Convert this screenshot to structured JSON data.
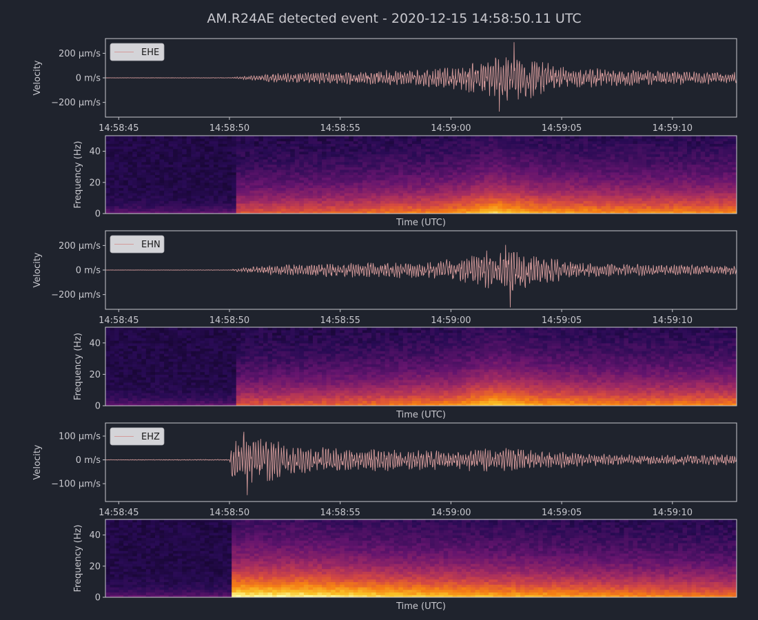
{
  "title": "AM.R24AE detected event - 2020-12-15 14:58:50.11 UTC",
  "colors": {
    "background": "#1f232d",
    "text": "#c9c9cf",
    "axes_frame": "#c9c9cf",
    "trace": "#d49a9a",
    "legend_bg": "#d4d4d8",
    "spectrogram_colormap": "inferno"
  },
  "chart_data": [
    {
      "type": "line",
      "name": "waveform-ehe",
      "legend": "EHE",
      "legend_position": "top-left",
      "ylabel": "Velocity",
      "yticks": [
        {
          "value": 200,
          "label": "200 µm/s"
        },
        {
          "value": 0,
          "label": "0 m/s"
        },
        {
          "value": -200,
          "label": "−200 µm/s"
        }
      ],
      "ylim": [
        -320,
        320
      ],
      "xlim": [
        -5.6,
        22.9
      ],
      "xticks": [
        {
          "value": -5,
          "label": "14:58:45"
        },
        {
          "value": 0,
          "label": "14:58:50"
        },
        {
          "value": 5,
          "label": "14:58:55"
        },
        {
          "value": 10,
          "label": "14:59:00"
        },
        {
          "value": 15,
          "label": "14:59:05"
        },
        {
          "value": 20,
          "label": "14:59:10"
        }
      ],
      "x_unit": "seconds relative to 14:58:50 UTC",
      "envelope": [
        [
          -5.6,
          1
        ],
        [
          0,
          2
        ],
        [
          0.4,
          10
        ],
        [
          2,
          40
        ],
        [
          5,
          55
        ],
        [
          8,
          70
        ],
        [
          10,
          90
        ],
        [
          11.5,
          150
        ],
        [
          12.5,
          230
        ],
        [
          13.5,
          180
        ],
        [
          15,
          90
        ],
        [
          18,
          70
        ],
        [
          20,
          60
        ],
        [
          22.9,
          50
        ]
      ],
      "peak_max": 290,
      "peak_min": -275
    },
    {
      "type": "heatmap",
      "name": "spectrogram-ehe",
      "xlabel": "Time (UTC)",
      "ylabel": "Frequency (Hz)",
      "yticks": [
        0,
        20,
        40
      ],
      "ylim": [
        0,
        50
      ],
      "xlim": [
        -5.6,
        22.9
      ],
      "onset": 0.4,
      "energy_profile": [
        [
          -5.6,
          0.12
        ],
        [
          0,
          0.12
        ],
        [
          0.4,
          0.55
        ],
        [
          5,
          0.6
        ],
        [
          10,
          0.7
        ],
        [
          12,
          0.85
        ],
        [
          14,
          0.75
        ],
        [
          18,
          0.7
        ],
        [
          22.9,
          0.7
        ]
      ]
    },
    {
      "type": "line",
      "name": "waveform-ehn",
      "legend": "EHN",
      "legend_position": "top-left",
      "ylabel": "Velocity",
      "yticks": [
        {
          "value": 200,
          "label": "200 µm/s"
        },
        {
          "value": 0,
          "label": "0 m/s"
        },
        {
          "value": -200,
          "label": "−200 µm/s"
        }
      ],
      "ylim": [
        -320,
        320
      ],
      "xlim": [
        -5.6,
        22.9
      ],
      "xticks": [
        {
          "value": -5,
          "label": "14:58:45"
        },
        {
          "value": 0,
          "label": "14:58:50"
        },
        {
          "value": 5,
          "label": "14:58:55"
        },
        {
          "value": 10,
          "label": "14:59:00"
        },
        {
          "value": 15,
          "label": "14:59:05"
        },
        {
          "value": 20,
          "label": "14:59:10"
        }
      ],
      "x_unit": "seconds relative to 14:58:50 UTC",
      "envelope": [
        [
          -5.6,
          1
        ],
        [
          0,
          2
        ],
        [
          0.4,
          15
        ],
        [
          2,
          45
        ],
        [
          5,
          60
        ],
        [
          9,
          70
        ],
        [
          10.5,
          110
        ],
        [
          12,
          200
        ],
        [
          13,
          210
        ],
        [
          14,
          120
        ],
        [
          16,
          60
        ],
        [
          20,
          45
        ],
        [
          22.9,
          40
        ]
      ],
      "peak_max": 205,
      "peak_min": -305
    },
    {
      "type": "heatmap",
      "name": "spectrogram-ehn",
      "xlabel": "Time (UTC)",
      "ylabel": "Frequency (Hz)",
      "yticks": [
        0,
        20,
        40
      ],
      "ylim": [
        0,
        50
      ],
      "xlim": [
        -5.6,
        22.9
      ],
      "onset": 0.4,
      "energy_profile": [
        [
          -5.6,
          0.12
        ],
        [
          0,
          0.12
        ],
        [
          0.4,
          0.55
        ],
        [
          5,
          0.6
        ],
        [
          10,
          0.7
        ],
        [
          12,
          0.85
        ],
        [
          14,
          0.75
        ],
        [
          18,
          0.68
        ],
        [
          22.9,
          0.68
        ]
      ]
    },
    {
      "type": "line",
      "name": "waveform-ehz",
      "legend": "EHZ",
      "legend_position": "top-left",
      "ylabel": "Velocity",
      "yticks": [
        {
          "value": 100,
          "label": "100 µm/s"
        },
        {
          "value": 0,
          "label": "0 m/s"
        },
        {
          "value": -100,
          "label": "−100 µm/s"
        }
      ],
      "ylim": [
        -175,
        155
      ],
      "xlim": [
        -5.6,
        22.9
      ],
      "xticks": [
        {
          "value": -5,
          "label": "14:58:45"
        },
        {
          "value": 0,
          "label": "14:58:50"
        },
        {
          "value": 5,
          "label": "14:58:55"
        },
        {
          "value": 10,
          "label": "14:59:00"
        },
        {
          "value": 15,
          "label": "14:59:05"
        },
        {
          "value": 20,
          "label": "14:59:10"
        }
      ],
      "x_unit": "seconds relative to 14:58:50 UTC",
      "envelope": [
        [
          -5.6,
          1
        ],
        [
          0,
          2
        ],
        [
          0.1,
          80
        ],
        [
          0.5,
          110
        ],
        [
          1.8,
          105
        ],
        [
          3,
          60
        ],
        [
          6,
          50
        ],
        [
          10,
          45
        ],
        [
          12,
          55
        ],
        [
          16,
          30
        ],
        [
          19,
          20
        ],
        [
          22.9,
          25
        ]
      ],
      "peak_max": 118,
      "peak_min": -148
    },
    {
      "type": "heatmap",
      "name": "spectrogram-ehz",
      "xlabel": "Time (UTC)",
      "ylabel": "Frequency (Hz)",
      "yticks": [
        0,
        20,
        40
      ],
      "ylim": [
        0,
        50
      ],
      "xlim": [
        -5.6,
        22.9
      ],
      "onset": 0.1,
      "energy_profile": [
        [
          -5.6,
          0.14
        ],
        [
          -0.1,
          0.14
        ],
        [
          0.1,
          0.95
        ],
        [
          3,
          0.95
        ],
        [
          8,
          0.85
        ],
        [
          15,
          0.75
        ],
        [
          22.9,
          0.65
        ]
      ]
    }
  ]
}
